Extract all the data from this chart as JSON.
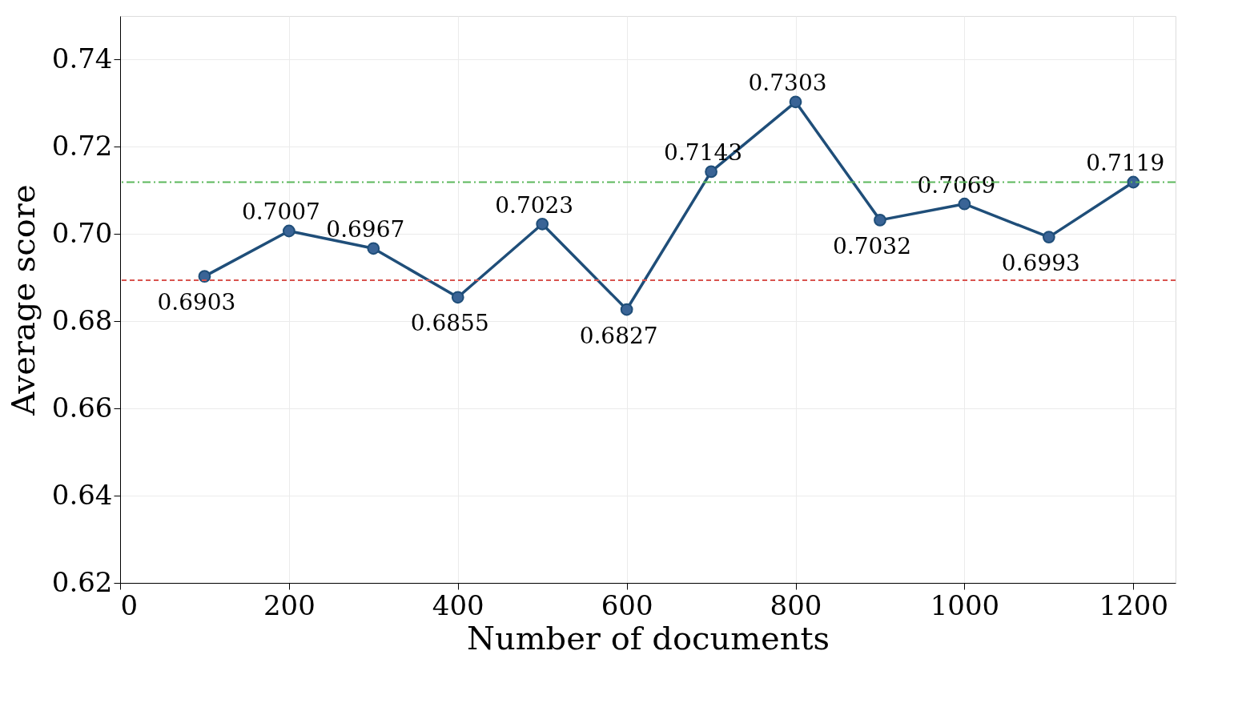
{
  "chart_data": {
    "type": "line",
    "xlabel": "Number of documents",
    "ylabel": "Average score",
    "x": [
      100,
      200,
      300,
      400,
      500,
      600,
      700,
      800,
      900,
      1000,
      1100,
      1200
    ],
    "series": [
      {
        "color": "#1f4e79",
        "values": [
          0.6903,
          0.7007,
          0.6967,
          0.6855,
          0.7023,
          0.6827,
          0.7143,
          0.7303,
          0.7032,
          0.7069,
          0.6993,
          0.7119
        ]
      }
    ],
    "xlim": [
      0,
      1250
    ],
    "ylim": [
      0.62,
      0.75
    ],
    "xticks": [
      0,
      200,
      400,
      600,
      800,
      1000,
      1200
    ],
    "yticks": [
      {
        "value": 0.62,
        "label": "0.62"
      },
      {
        "value": 0.64,
        "label": "0.64"
      },
      {
        "value": 0.66,
        "label": "0.66"
      },
      {
        "value": 0.68,
        "label": "0.68"
      },
      {
        "value": 0.7,
        "label": "0.70"
      },
      {
        "value": 0.72,
        "label": "0.72"
      },
      {
        "value": 0.74,
        "label": "0.74"
      }
    ],
    "ref_lines": [
      {
        "axis": "y",
        "value": 0.7119,
        "color": "#5cb85c",
        "line_style": "dashdot"
      },
      {
        "axis": "y",
        "value": 0.6894,
        "color": "#d9534f",
        "line_style": "dashed"
      }
    ],
    "grid": true,
    "marker": "circle",
    "line_style": "solid",
    "data_labels": true
  }
}
